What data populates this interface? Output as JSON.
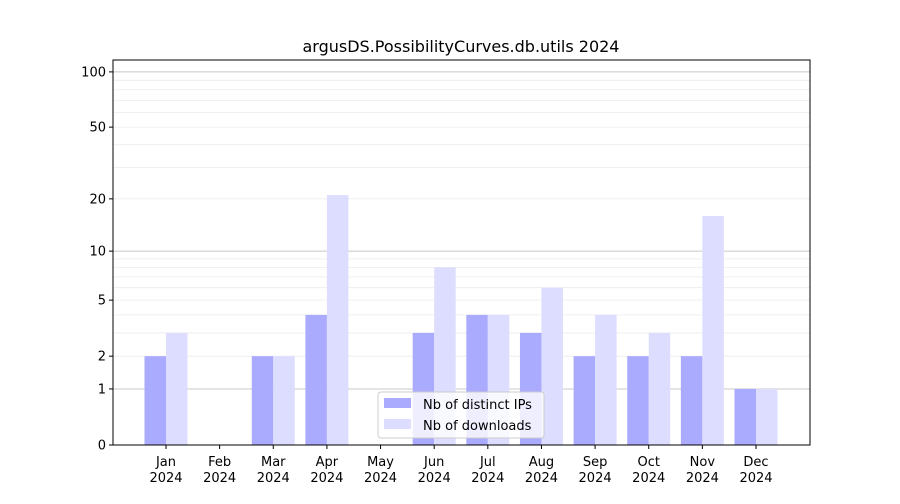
{
  "chart_data": {
    "type": "bar",
    "title": "argusDS.PossibilityCurves.db.utils 2024",
    "xlabel": "",
    "ylabel": "",
    "yscale": "log(1+y)",
    "ylim": [
      0,
      116
    ],
    "yticks": [
      0,
      1,
      2,
      5,
      10,
      20,
      50,
      100
    ],
    "grid": true,
    "legend_position": "bottom-center",
    "categories": [
      "Jan\n2024",
      "Feb\n2024",
      "Mar\n2024",
      "Apr\n2024",
      "May\n2024",
      "Jun\n2024",
      "Jul\n2024",
      "Aug\n2024",
      "Sep\n2024",
      "Oct\n2024",
      "Nov\n2024",
      "Dec\n2024"
    ],
    "series": [
      {
        "name": "Nb of distinct IPs",
        "color": "#aaaaff",
        "values": [
          2,
          0,
          2,
          4,
          0,
          3,
          4,
          3,
          2,
          2,
          2,
          1
        ]
      },
      {
        "name": "Nb of downloads",
        "color": "#ddddff",
        "values": [
          3,
          0,
          2,
          21,
          0,
          8,
          4,
          6,
          4,
          3,
          16,
          1
        ]
      }
    ]
  }
}
